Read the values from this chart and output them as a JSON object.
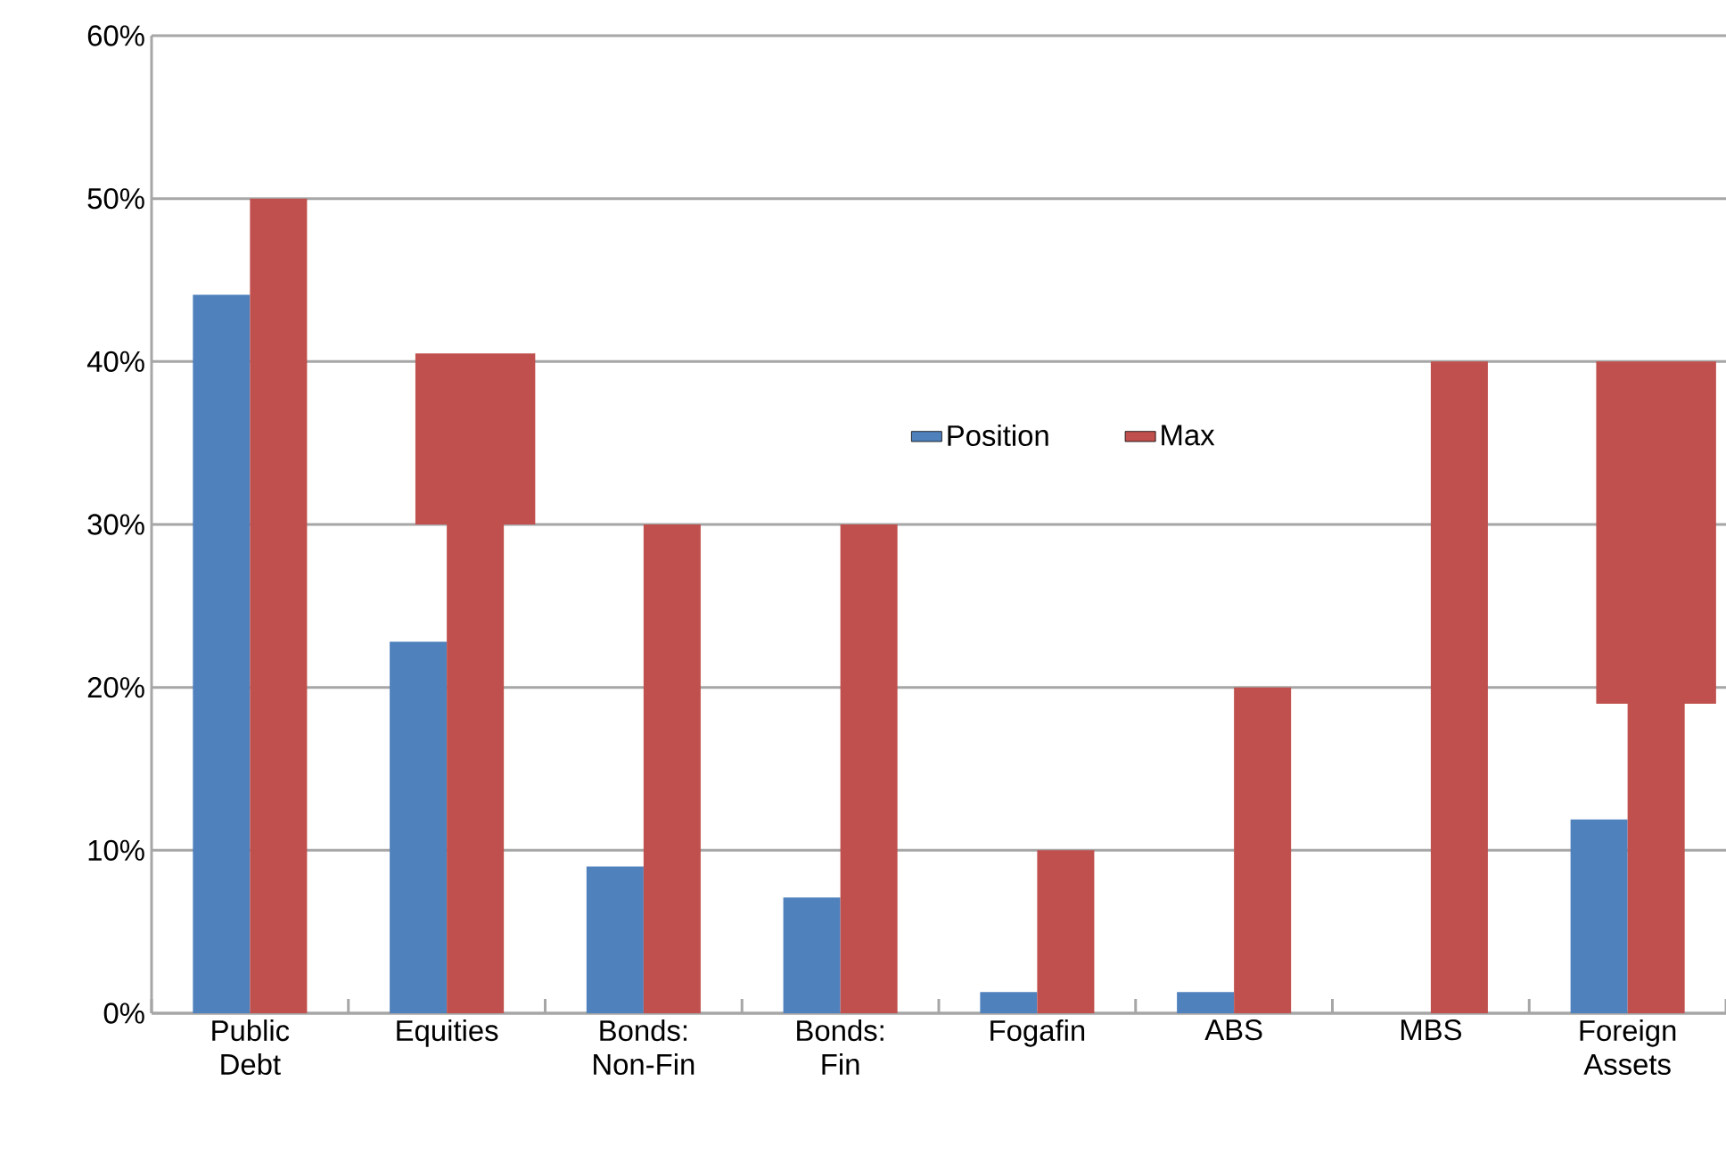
{
  "chart_data": {
    "type": "bar",
    "categories": [
      "Public Debt",
      "Equities",
      "Bonds: Non-Fin",
      "Bonds: Fin",
      "Fogafin",
      "ABS",
      "MBS",
      "Foreign Assets"
    ],
    "series": [
      {
        "name": "Position",
        "color": "#4f81bd",
        "values": [
          44.1,
          22.8,
          9.0,
          7.1,
          1.3,
          1.3,
          null,
          11.9
        ]
      },
      {
        "name": "Max",
        "color": "#c0504d",
        "values": [
          50,
          30,
          30,
          30,
          10,
          20,
          40,
          19
        ]
      },
      {
        "color": "#c0504d",
        "values": [
          null,
          10.5,
          null,
          null,
          null,
          null,
          null,
          21
        ],
        "base": [
          null,
          30,
          null,
          null,
          null,
          null,
          null,
          19
        ]
      }
    ],
    "ylim": [
      0,
      60
    ],
    "yticks": [
      {
        "value": 0,
        "label": "0%"
      },
      {
        "value": 10,
        "label": "10%"
      },
      {
        "value": 20,
        "label": "20%"
      },
      {
        "value": 30,
        "label": "30%"
      },
      {
        "value": 40,
        "label": "40%"
      },
      {
        "value": 50,
        "label": "50%"
      },
      {
        "value": 60,
        "label": "60%"
      }
    ],
    "grid": "y",
    "legend": "center"
  }
}
